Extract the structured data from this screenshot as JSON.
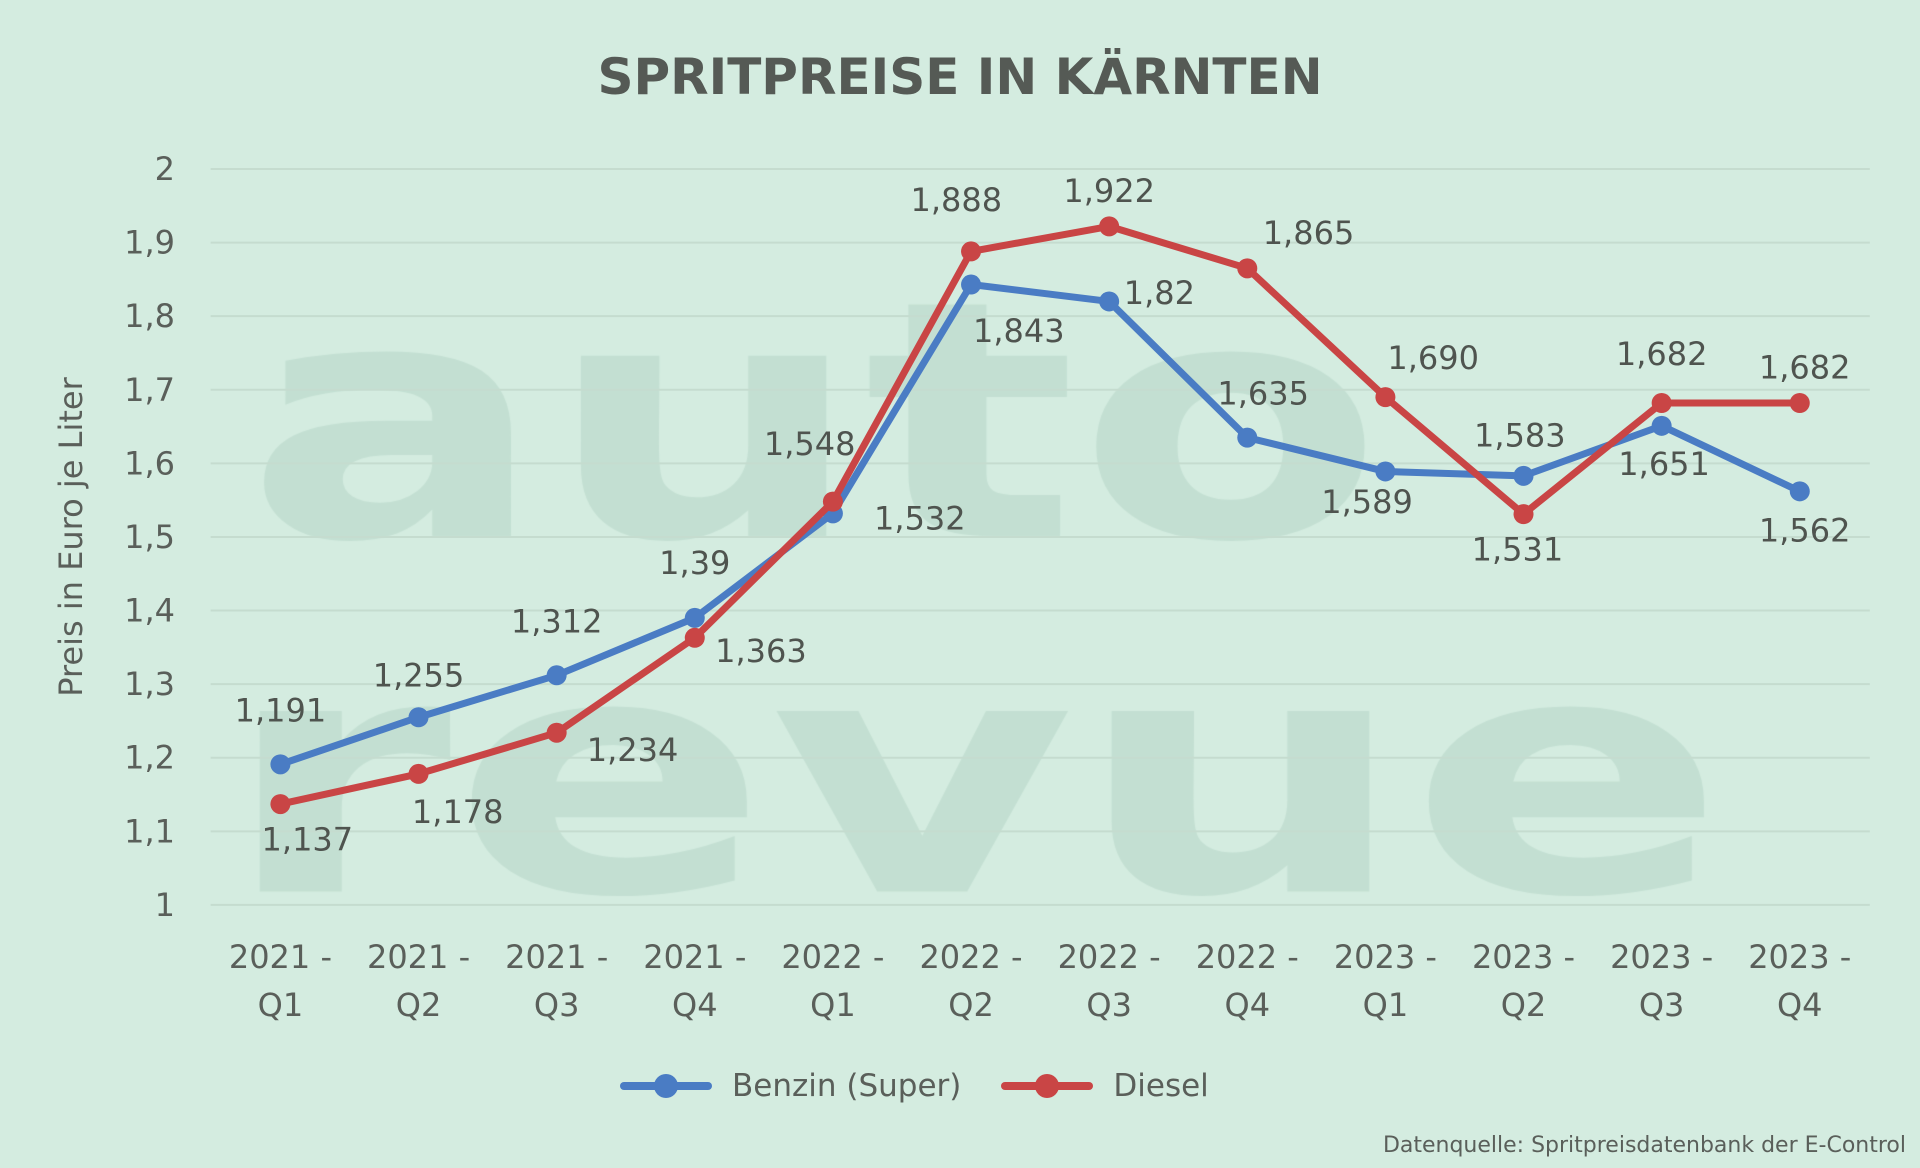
{
  "watermark": [
    "auto",
    "revue"
  ],
  "source": "Datenquelle: Spritpreisdatenbank der E-Control",
  "colors": {
    "benzin": "#4a7cc4",
    "diesel": "#c94545",
    "background": "#d4ece0"
  },
  "chart_data": {
    "type": "line",
    "title": "SPRITPREISE IN KÄRNTEN",
    "ylabel": "Preis in Euro je Liter",
    "xlabel": "",
    "ylim": [
      1,
      2
    ],
    "yticks": [
      "1",
      "1,1",
      "1,2",
      "1,3",
      "1,4",
      "1,5",
      "1,6",
      "1,7",
      "1,8",
      "1,9",
      "2"
    ],
    "grid": true,
    "legend": "bottom",
    "categories": [
      [
        "2021 -",
        "Q1"
      ],
      [
        "2021 -",
        "Q2"
      ],
      [
        "2021 -",
        "Q3"
      ],
      [
        "2021 -",
        "Q4"
      ],
      [
        "2022 -",
        "Q1"
      ],
      [
        "2022 -",
        "Q2"
      ],
      [
        "2022 -",
        "Q3"
      ],
      [
        "2022 -",
        "Q4"
      ],
      [
        "2023 -",
        "Q1"
      ],
      [
        "2023 -",
        "Q2"
      ],
      [
        "2023 -",
        "Q3"
      ],
      [
        "2023 -",
        "Q4"
      ]
    ],
    "series": [
      {
        "name": "Benzin (Super)",
        "color": "#4a7cc4",
        "values": [
          1.191,
          1.255,
          1.312,
          1.39,
          1.532,
          1.843,
          1.82,
          1.635,
          1.589,
          1.583,
          1.651,
          1.562
        ],
        "labels": [
          "1,191",
          "1,255",
          "1,312",
          "1,39",
          "1,532",
          "1,843",
          "1,82",
          "1,635",
          "1,589",
          "1,583",
          "1,651",
          "1,562"
        ]
      },
      {
        "name": "Diesel",
        "color": "#c94545",
        "values": [
          1.137,
          1.178,
          1.234,
          1.363,
          1.548,
          1.888,
          1.922,
          1.865,
          1.69,
          1.531,
          1.682,
          1.682
        ],
        "labels": [
          "1,137",
          "1,178",
          "1,234",
          "1,363",
          "1,548",
          "1,888",
          "1,922",
          "1,865",
          "1,690",
          "1,531",
          "1,682",
          "1,682"
        ]
      }
    ]
  }
}
